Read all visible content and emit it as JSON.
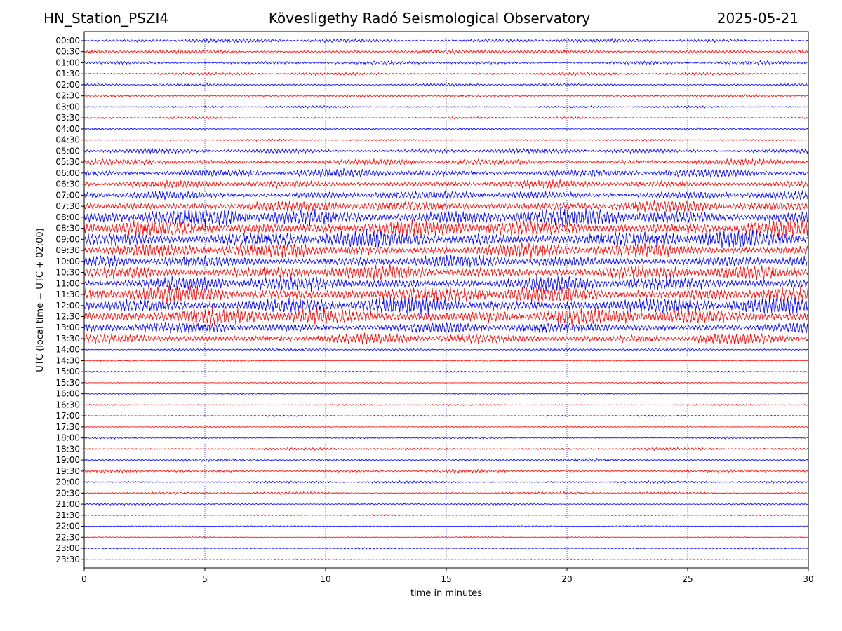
{
  "header": {
    "station": "HN_Station_PSZI4",
    "observatory": "Kövesligethy Radó Seismological Observatory",
    "date": "2025-05-21"
  },
  "chart_data": {
    "type": "line",
    "title": "Kövesligethy Radó Seismological Observatory",
    "xlabel": "time in minutes",
    "ylabel": "UTC (local time = UTC + 02:00)",
    "xlim": [
      0,
      30
    ],
    "x_ticks": [
      0,
      5,
      10,
      15,
      20,
      25,
      30
    ],
    "x_tick_labels": [
      "0",
      "5",
      "10",
      "15",
      "20",
      "25",
      "30"
    ],
    "grid": "vertical dotted lines at x ticks",
    "series_colors": [
      "#0000ff",
      "#ff0000"
    ],
    "rows": [
      {
        "label": "00:00",
        "amplitude": 0.22
      },
      {
        "label": "00:30",
        "amplitude": 0.2
      },
      {
        "label": "01:00",
        "amplitude": 0.18
      },
      {
        "label": "01:30",
        "amplitude": 0.15
      },
      {
        "label": "02:00",
        "amplitude": 0.14
      },
      {
        "label": "02:30",
        "amplitude": 0.12
      },
      {
        "label": "03:00",
        "amplitude": 0.1
      },
      {
        "label": "03:30",
        "amplitude": 0.1
      },
      {
        "label": "04:00",
        "amplitude": 0.1
      },
      {
        "label": "04:30",
        "amplitude": 0.08
      },
      {
        "label": "05:00",
        "amplitude": 0.28
      },
      {
        "label": "05:30",
        "amplitude": 0.35
      },
      {
        "label": "06:00",
        "amplitude": 0.45
      },
      {
        "label": "06:30",
        "amplitude": 0.45
      },
      {
        "label": "07:00",
        "amplitude": 0.5
      },
      {
        "label": "07:30",
        "amplitude": 0.65
      },
      {
        "label": "08:00",
        "amplitude": 1.0
      },
      {
        "label": "08:30",
        "amplitude": 1.0
      },
      {
        "label": "09:00",
        "amplitude": 1.0
      },
      {
        "label": "09:30",
        "amplitude": 0.85
      },
      {
        "label": "10:00",
        "amplitude": 0.7
      },
      {
        "label": "10:30",
        "amplitude": 0.85
      },
      {
        "label": "11:00",
        "amplitude": 0.85
      },
      {
        "label": "11:30",
        "amplitude": 0.95
      },
      {
        "label": "12:00",
        "amplitude": 1.0
      },
      {
        "label": "12:30",
        "amplitude": 1.0
      },
      {
        "label": "13:00",
        "amplitude": 0.65
      },
      {
        "label": "13:30",
        "amplitude": 0.6
      },
      {
        "label": "14:00",
        "amplitude": 0.12
      },
      {
        "label": "14:30",
        "amplitude": 0.05
      },
      {
        "label": "15:00",
        "amplitude": 0.05
      },
      {
        "label": "15:30",
        "amplitude": 0.05
      },
      {
        "label": "16:00",
        "amplitude": 0.05
      },
      {
        "label": "16:30",
        "amplitude": 0.06
      },
      {
        "label": "17:00",
        "amplitude": 0.05
      },
      {
        "label": "17:30",
        "amplitude": 0.05
      },
      {
        "label": "18:00",
        "amplitude": 0.08
      },
      {
        "label": "18:30",
        "amplitude": 0.12
      },
      {
        "label": "19:00",
        "amplitude": 0.15
      },
      {
        "label": "19:30",
        "amplitude": 0.15
      },
      {
        "label": "20:00",
        "amplitude": 0.12
      },
      {
        "label": "20:30",
        "amplitude": 0.12
      },
      {
        "label": "21:00",
        "amplitude": 0.08
      },
      {
        "label": "21:30",
        "amplitude": 0.05
      },
      {
        "label": "22:00",
        "amplitude": 0.05
      },
      {
        "label": "22:30",
        "amplitude": 0.05
      },
      {
        "label": "23:00",
        "amplitude": 0.05
      },
      {
        "label": "23:30",
        "amplitude": 0.04
      }
    ]
  }
}
